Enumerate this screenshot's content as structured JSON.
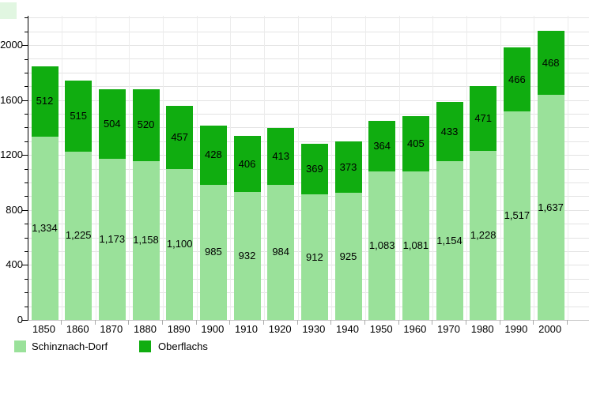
{
  "chart_data": {
    "type": "bar",
    "stacked": true,
    "title": "",
    "xlabel": "",
    "ylabel": "",
    "categories": [
      "1850",
      "1860",
      "1870",
      "1880",
      "1890",
      "1900",
      "1910",
      "1920",
      "1930",
      "1940",
      "1950",
      "1960",
      "1970",
      "1980",
      "1990",
      "2000"
    ],
    "series": [
      {
        "name": "Schinznach-Dorf",
        "color": "#9ae19a",
        "values": [
          1334,
          1225,
          1173,
          1158,
          1100,
          985,
          932,
          984,
          912,
          925,
          1083,
          1081,
          1154,
          1228,
          1517,
          1637
        ]
      },
      {
        "name": "Oberflachs",
        "color": "#10ad10",
        "values": [
          512,
          515,
          504,
          520,
          457,
          428,
          406,
          413,
          369,
          373,
          364,
          405,
          433,
          471,
          466,
          468
        ]
      }
    ],
    "ylim": [
      0,
      2213
    ],
    "y_ticks_labeled": [
      0,
      400,
      800,
      1200,
      1600,
      2000
    ],
    "y_minor_tick_step": 100,
    "grid": true,
    "value_labels": "inside-segment-centered-thousands-separated",
    "legend_position": "bottom-left"
  },
  "colors": {
    "grid_major": "#e3e3e3",
    "grid_vertical": "#ececec",
    "axis": "#000000",
    "label_text": "#000000"
  }
}
